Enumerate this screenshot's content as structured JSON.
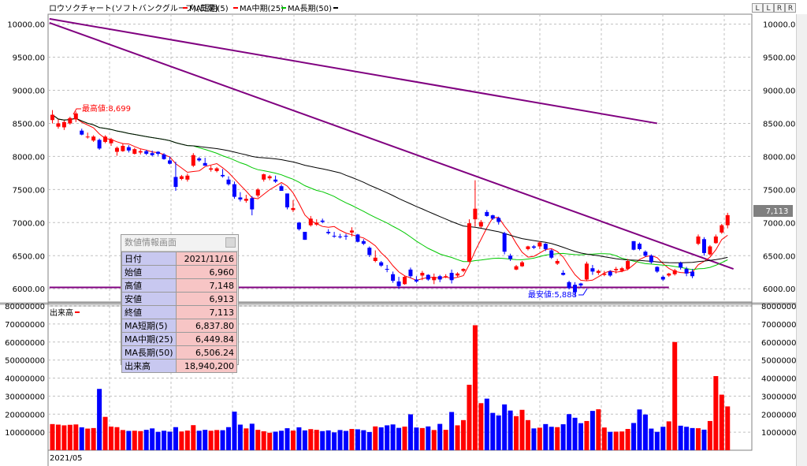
{
  "legend": {
    "chart_name": "ロウソクチャート(ソフトバンクグループ)(日足)",
    "ma5": "MA短期(5)",
    "ma25": "MA中期(25)",
    "ma50": "MA長期(50)"
  },
  "volume_label": "出来高",
  "date_label": "2021/05",
  "max_label": "最高値:8,699",
  "min_label": "最安値:5,888",
  "last_price_tag": "7,113",
  "toolbar": {
    "b1": "L",
    "b2": "L",
    "b3": "R",
    "b4": "R"
  },
  "price_axis_ticks": [
    "10000.00",
    "9500.00",
    "9000.00",
    "8500.00",
    "8000.00",
    "7500.00",
    "7000.00",
    "6500.00",
    "6000.00"
  ],
  "volume_axis_ticks": [
    "80000000",
    "70000000",
    "60000000",
    "50000000",
    "40000000",
    "30000000",
    "20000000",
    "10000000"
  ],
  "data_window": {
    "title": "数値情報画面",
    "rows": [
      {
        "label": "日付",
        "value": "2021/11/16"
      },
      {
        "label": "始値",
        "value": "6,960"
      },
      {
        "label": "高値",
        "value": "7,148"
      },
      {
        "label": "安値",
        "value": "6,913"
      },
      {
        "label": "終値",
        "value": "7,113"
      },
      {
        "label": "MA短期(5)",
        "value": "6,837.80"
      },
      {
        "label": "MA中期(25)",
        "value": "6,449.84"
      },
      {
        "label": "MA長期(50)",
        "value": "6,506.24"
      },
      {
        "label": "出来高",
        "value": "18,940,200"
      }
    ]
  },
  "colors": {
    "up": "#ff0000",
    "down": "#0000ff",
    "ma5": "#ff0000",
    "ma25": "#00c800",
    "ma50": "#000000",
    "trendline": "#800080",
    "grid": "#c0c0c0"
  },
  "chart_data": {
    "type": "candlestick",
    "price_ylim": [
      5800,
      10150
    ],
    "volume_ylim": [
      0,
      80000000
    ],
    "grid": true,
    "candles": [
      [
        8700,
        8500,
        8550,
        8630
      ],
      [
        8560,
        8420,
        8450,
        8500
      ],
      [
        8540,
        8400,
        8440,
        8520
      ],
      [
        8600,
        8480,
        8500,
        8580
      ],
      [
        8680,
        8520,
        8560,
        8650
      ],
      [
        8420,
        8320,
        8390,
        8330
      ],
      [
        8360,
        8270,
        8290,
        8300
      ],
      [
        8320,
        8220,
        8240,
        8300
      ],
      [
        8270,
        8100,
        8250,
        8120
      ],
      [
        8320,
        8200,
        8220,
        8300
      ],
      [
        8280,
        8160,
        8200,
        8260
      ],
      [
        8150,
        8010,
        8070,
        8130
      ],
      [
        8200,
        8070,
        8080,
        8160
      ],
      [
        8170,
        8060,
        8140,
        8090
      ],
      [
        8130,
        8030,
        8040,
        8110
      ],
      [
        8110,
        8030,
        8060,
        8080
      ],
      [
        8100,
        8020,
        8080,
        8040
      ],
      [
        8090,
        8000,
        8050,
        8020
      ],
      [
        8080,
        8010,
        8070,
        8040
      ],
      [
        8050,
        7950,
        8030,
        7960
      ],
      [
        8000,
        7880,
        7940,
        7890
      ],
      [
        7920,
        7480,
        7690,
        7540
      ],
      [
        7720,
        7640,
        7660,
        7700
      ],
      [
        7740,
        7620,
        7650,
        7710
      ],
      [
        8050,
        7840,
        7860,
        8020
      ],
      [
        7990,
        7920,
        7970,
        7940
      ],
      [
        7980,
        7880,
        7900,
        7860
      ],
      [
        7860,
        7770,
        7800,
        7820
      ],
      [
        7840,
        7760,
        7780,
        7820
      ],
      [
        7810,
        7680,
        7720,
        7700
      ],
      [
        7700,
        7560,
        7650,
        7580
      ],
      [
        7620,
        7360,
        7580,
        7390
      ],
      [
        7460,
        7320,
        7380,
        7350
      ],
      [
        7420,
        7300,
        7330,
        7360
      ],
      [
        7400,
        7110,
        7370,
        7200
      ],
      [
        7520,
        7380,
        7410,
        7500
      ],
      [
        7740,
        7620,
        7650,
        7730
      ],
      [
        7720,
        7640,
        7670,
        7700
      ],
      [
        7710,
        7600,
        7650,
        7620
      ],
      [
        7580,
        7480,
        7550,
        7480
      ],
      [
        7440,
        7200,
        7440,
        7230
      ],
      [
        7340,
        7160,
        7190,
        7220
      ],
      [
        7010,
        6880,
        7000,
        6900
      ],
      [
        6860,
        6740,
        6860,
        6740
      ],
      [
        7100,
        6940,
        6960,
        7060
      ],
      [
        7050,
        6950,
        6970,
        7000
      ],
      [
        7060,
        6990,
        7030,
        7010
      ],
      [
        6900,
        6820,
        6860,
        6840
      ],
      [
        6860,
        6770,
        6800,
        6790
      ],
      [
        6830,
        6760,
        6790,
        6780
      ],
      [
        6830,
        6740,
        6800,
        6790
      ],
      [
        6930,
        6790,
        6850,
        6880
      ],
      [
        6830,
        6700,
        6820,
        6710
      ],
      [
        6750,
        6660,
        6720,
        6680
      ],
      [
        6640,
        6480,
        6620,
        6510
      ],
      [
        6580,
        6400,
        6420,
        6470
      ],
      [
        6420,
        6330,
        6400,
        6350
      ],
      [
        6360,
        6250,
        6300,
        6290
      ],
      [
        6260,
        6090,
        6220,
        6120
      ],
      [
        6180,
        6000,
        6110,
        6040
      ],
      [
        6200,
        6060,
        6070,
        6180
      ],
      [
        6320,
        6160,
        6290,
        6190
      ],
      [
        6190,
        6090,
        6140,
        6110
      ],
      [
        6270,
        6130,
        6200,
        6240
      ],
      [
        6220,
        6120,
        6210,
        6140
      ],
      [
        6230,
        6070,
        6130,
        6180
      ],
      [
        6210,
        6100,
        6190,
        6140
      ],
      [
        6220,
        6160,
        6180,
        6190
      ],
      [
        6290,
        6080,
        6240,
        6130
      ],
      [
        6250,
        6180,
        6200,
        6230
      ],
      [
        6310,
        6250,
        6270,
        6300
      ],
      [
        7050,
        6400,
        6410,
        6990
      ],
      [
        7640,
        6940,
        7050,
        7210
      ],
      [
        7040,
        6920,
        6940,
        7010
      ],
      [
        7190,
        7090,
        7160,
        7100
      ],
      [
        7120,
        7040,
        7110,
        7060
      ],
      [
        7090,
        6970,
        7070,
        7010
      ],
      [
        6860,
        6520,
        6840,
        6560
      ],
      [
        6530,
        6420,
        6500,
        6450
      ],
      [
        6360,
        6280,
        6290,
        6340
      ],
      [
        6420,
        6330,
        6340,
        6400
      ],
      [
        6650,
        6580,
        6600,
        6640
      ],
      [
        6660,
        6600,
        6640,
        6620
      ],
      [
        6720,
        6600,
        6640,
        6700
      ],
      [
        6690,
        6570,
        6680,
        6600
      ],
      [
        6600,
        6450,
        6580,
        6470
      ],
      [
        6450,
        6360,
        6380,
        6420
      ],
      [
        6280,
        6200,
        6240,
        6210
      ],
      [
        6120,
        5990,
        6100,
        6010
      ],
      [
        6100,
        5888,
        6060,
        5950
      ],
      [
        6090,
        6010,
        6080,
        6050
      ],
      [
        6410,
        6120,
        6140,
        6380
      ],
      [
        6360,
        6210,
        6310,
        6260
      ],
      [
        6290,
        6210,
        6240,
        6270
      ],
      [
        6270,
        6190,
        6210,
        6230
      ],
      [
        6280,
        6180,
        6260,
        6200
      ],
      [
        6330,
        6230,
        6280,
        6300
      ],
      [
        6330,
        6250,
        6270,
        6310
      ],
      [
        6450,
        6280,
        6300,
        6420
      ],
      [
        6720,
        6580,
        6720,
        6590
      ],
      [
        6700,
        6580,
        6680,
        6600
      ],
      [
        6580,
        6480,
        6560,
        6500
      ],
      [
        6520,
        6380,
        6500,
        6400
      ],
      [
        6340,
        6240,
        6330,
        6260
      ],
      [
        6200,
        6120,
        6180,
        6140
      ],
      [
        6240,
        6180,
        6200,
        6230
      ],
      [
        6300,
        6200,
        6220,
        6280
      ],
      [
        6410,
        6290,
        6390,
        6320
      ],
      [
        6330,
        6190,
        6300,
        6230
      ],
      [
        6300,
        6160,
        6260,
        6190
      ],
      [
        6820,
        6660,
        6680,
        6790
      ],
      [
        6780,
        6500,
        6750,
        6540
      ],
      [
        6660,
        6500,
        6520,
        6640
      ],
      [
        6820,
        6680,
        6690,
        6790
      ],
      [
        6980,
        6830,
        6850,
        6960
      ],
      [
        7148,
        6913,
        6960,
        7113
      ]
    ],
    "volumes": [
      14500000,
      14200000,
      13800000,
      14100000,
      14300000,
      12700000,
      12000000,
      12300000,
      34000000,
      18500000,
      13100000,
      12800000,
      11200000,
      10700000,
      10800000,
      10600000,
      11300000,
      12100000,
      10200000,
      10800000,
      10300000,
      12800000,
      10400000,
      10900000,
      13900000,
      10800000,
      11300000,
      10800000,
      11200000,
      11100000,
      12800000,
      21400000,
      14200000,
      12100000,
      14700000,
      11300000,
      10500000,
      9700000,
      10300000,
      10800000,
      12200000,
      10900000,
      12700000,
      11000000,
      11700000,
      11300000,
      10600000,
      11000000,
      9900000,
      11200000,
      10700000,
      11800000,
      11600000,
      11100000,
      10100000,
      13200000,
      12700000,
      13800000,
      14300000,
      12400000,
      13100000,
      19900000,
      12600000,
      12300000,
      13200000,
      11200000,
      14600000,
      11300000,
      21200000,
      13800000,
      16700000,
      36300000,
      69300000,
      26100000,
      28600000,
      20700000,
      19300000,
      25400000,
      22000000,
      18900000,
      22400000,
      16700000,
      12100000,
      12500000,
      14500000,
      13000000,
      12800000,
      14400000,
      20000000,
      18000000,
      15000000,
      16200000,
      21800000,
      22700000,
      12600000,
      10200000,
      10300000,
      10400000,
      11800000,
      15100000,
      22600000,
      19800000,
      12000000,
      10200000,
      13000000,
      16000000,
      60000000,
      13600000,
      13000000,
      12300000,
      12200000,
      11400000,
      16200000,
      41100000,
      30800000,
      24300000,
      23500000,
      21700000,
      18900000
    ]
  }
}
